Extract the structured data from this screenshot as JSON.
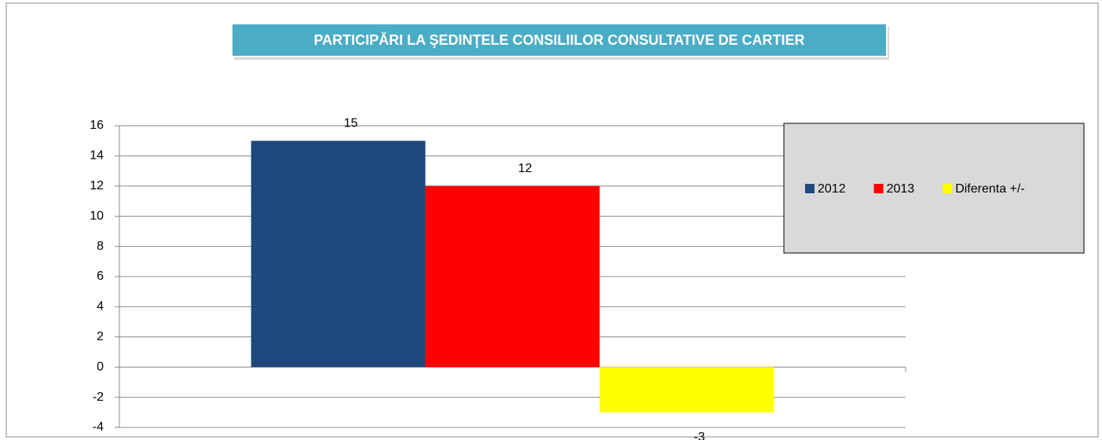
{
  "chart_data": {
    "type": "bar",
    "title": "PARTICIPĂRI LA ŞEDINŢELE CONSILIILOR CONSULTATIVE DE CARTIER",
    "categories": [
      null
    ],
    "series": [
      {
        "name": "2012",
        "color": "#1f497d",
        "values": [
          15
        ]
      },
      {
        "name": "2013",
        "color": "#ff0000",
        "values": [
          12
        ]
      },
      {
        "name": "Diferenta +/-",
        "color": "#ffff00",
        "values": [
          -3
        ]
      }
    ],
    "ylim": [
      -4,
      16
    ],
    "yticks": [
      -4,
      -2,
      0,
      2,
      4,
      6,
      8,
      10,
      12,
      14,
      16
    ],
    "grid": true,
    "legend": "upper right"
  }
}
